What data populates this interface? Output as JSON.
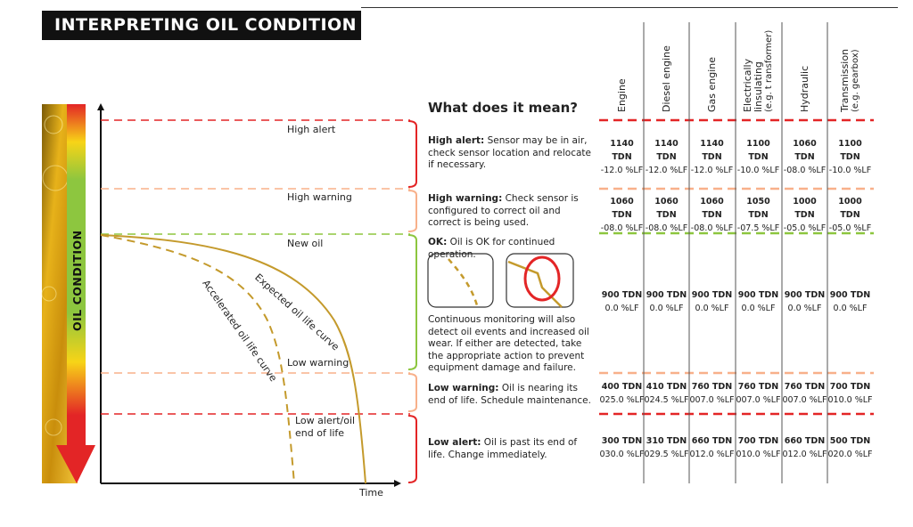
{
  "title": "INTERPRETING OIL CONDITION",
  "oil_bar_label": "OIL CONDITION",
  "colors": {
    "alert": "#e32526",
    "warning": "#f8b08a",
    "ok": "#8dc63f",
    "curve": "#c49a2c"
  },
  "diagram": {
    "zones": [
      "High alert",
      "High warning",
      "New oil",
      "Low warning",
      "Low alert/oil",
      "end of life"
    ],
    "curves": {
      "expected": "Expected oil life curve",
      "accelerated": "Accelerated oil life curve"
    },
    "x_axis": "Time"
  },
  "meaning": {
    "heading": "What does it mean?",
    "high_alert": {
      "term": "High alert:",
      "text": " Sensor may be in air, check sensor location and relocate if necessary."
    },
    "high_warning": {
      "term": "High warning:",
      "text": " Check sensor is configured to correct oil and correct is being used."
    },
    "ok": {
      "term": "OK:",
      "text": " Oil is OK for continued operation."
    },
    "monitoring": "Continuous monitoring will also detect oil events and increased oil wear. If either are detected, take the appropriate action to prevent equipment damage and failure.",
    "low_warning": {
      "term": "Low warning:",
      "text": " Oil is nearing its end of life. Schedule maintenance."
    },
    "low_alert": {
      "term": "Low alert:",
      "text": " Oil is past its end of life. Change immediately."
    }
  },
  "table": {
    "columns": [
      {
        "l1": "Engine",
        "l2": "",
        "l3": ""
      },
      {
        "l1": "Diesel engine",
        "l2": "",
        "l3": ""
      },
      {
        "l1": "Gas engine",
        "l2": "",
        "l3": ""
      },
      {
        "l1": "Electrically",
        "l2": "linsulating",
        "l3": "(e.g. t ransformer)"
      },
      {
        "l1": "Hydraulic",
        "l2": "",
        "l3": ""
      },
      {
        "l1": "Transmission",
        "l2": "(e.g. gearbox)",
        "l3": ""
      }
    ],
    "rows": [
      [
        [
          "1140 TDN",
          "-12.0 %LF"
        ],
        [
          "1140 TDN",
          "-12.0 %LF"
        ],
        [
          "1140 TDN",
          "-12.0 %LF"
        ],
        [
          "1100 TDN",
          "-10.0 %LF"
        ],
        [
          "1060 TDN",
          "-08.0 %LF"
        ],
        [
          "1100 TDN",
          "-10.0 %LF"
        ]
      ],
      [
        [
          "1060 TDN",
          "-08.0 %LF"
        ],
        [
          "1060 TDN",
          "-08.0 %LF"
        ],
        [
          "1060 TDN",
          "-08.0 %LF"
        ],
        [
          "1050 TDN",
          "-07.5 %LF"
        ],
        [
          "1000 TDN",
          "-05.0 %LF"
        ],
        [
          "1000 TDN",
          "-05.0 %LF"
        ]
      ],
      [
        [
          "900 TDN",
          "0.0 %LF"
        ],
        [
          "900 TDN",
          "0.0 %LF"
        ],
        [
          "900 TDN",
          "0.0 %LF"
        ],
        [
          "900 TDN",
          "0.0 %LF"
        ],
        [
          "900 TDN",
          "0.0 %LF"
        ],
        [
          "900 TDN",
          "0.0 %LF"
        ]
      ],
      [
        [
          "400 TDN",
          "025.0 %LF"
        ],
        [
          "410 TDN",
          "024.5 %LF"
        ],
        [
          "760 TDN",
          "007.0 %LF"
        ],
        [
          "760 TDN",
          "007.0 %LF"
        ],
        [
          "760 TDN",
          "007.0 %LF"
        ],
        [
          "700 TDN",
          "010.0 %LF"
        ]
      ],
      [
        [
          "300 TDN",
          "030.0 %LF"
        ],
        [
          "310 TDN",
          "029.5 %LF"
        ],
        [
          "660 TDN",
          "012.0 %LF"
        ],
        [
          "700 TDN",
          "010.0 %LF"
        ],
        [
          "660 TDN",
          "012.0 %LF"
        ],
        [
          "500 TDN",
          "020.0 %LF"
        ]
      ]
    ]
  }
}
